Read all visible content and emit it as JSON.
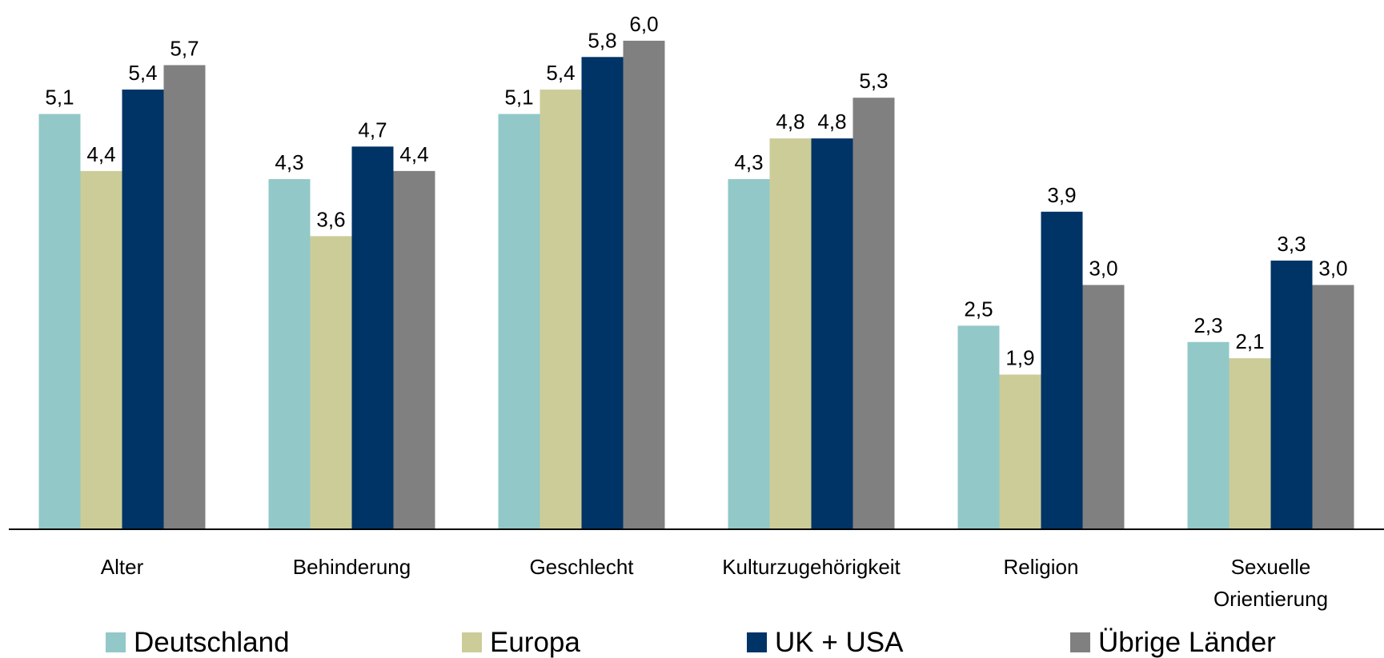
{
  "chart_data": {
    "type": "bar",
    "categories": [
      "Alter",
      "Behinderung",
      "Geschlecht",
      "Kulturzugehörigkeit",
      "Religion",
      "Sexuelle\nOrientierung"
    ],
    "series": [
      {
        "name": "Deutschland",
        "color": "#92c8c8",
        "values": [
          5.1,
          4.3,
          5.1,
          4.3,
          2.5,
          2.3
        ],
        "value_labels": [
          "5,1",
          "4,3",
          "5,1",
          "4,3",
          "2,5",
          "2,3"
        ]
      },
      {
        "name": "Europa",
        "color": "#cccc99",
        "values": [
          4.4,
          3.6,
          5.4,
          4.8,
          1.9,
          2.1
        ],
        "value_labels": [
          "4,4",
          "3,6",
          "5,4",
          "4,8",
          "1,9",
          "2,1"
        ]
      },
      {
        "name": "UK + USA",
        "color": "#003366",
        "values": [
          5.4,
          4.7,
          5.8,
          4.8,
          3.9,
          3.3
        ],
        "value_labels": [
          "5,4",
          "4,7",
          "5,8",
          "4,8",
          "3,9",
          "3,3"
        ]
      },
      {
        "name": "Übrige Länder",
        "color": "#808080",
        "values": [
          5.7,
          4.4,
          6.0,
          5.3,
          3.0,
          3.0
        ],
        "value_labels": [
          "5,7",
          "4,4",
          "6,0",
          "5,3",
          "3,0",
          "3,0"
        ]
      }
    ],
    "ylim": [
      0,
      6.5
    ],
    "legend": "bottom"
  }
}
